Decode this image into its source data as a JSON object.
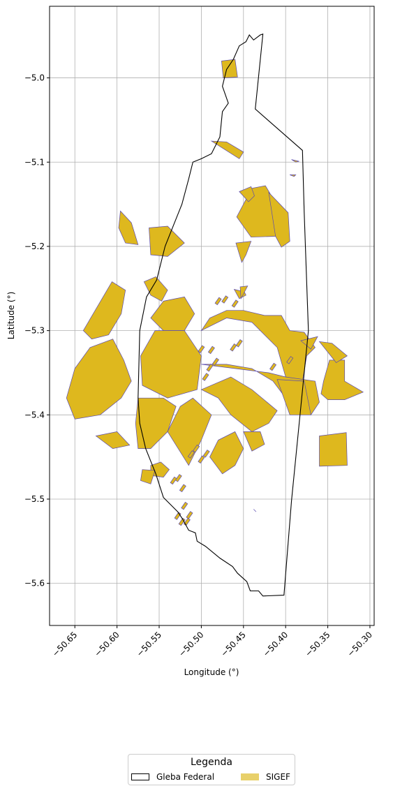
{
  "chart_data": {
    "type": "map",
    "xlabel": "Longitude (°)",
    "ylabel": "Latitude (°)",
    "xlim": [
      -50.68,
      -50.295
    ],
    "ylim": [
      -5.65,
      -4.915
    ],
    "xticks": [
      "−50.65",
      "−50.60",
      "−50.55",
      "−50.50",
      "−50.45",
      "−50.40",
      "−50.35",
      "−50.30"
    ],
    "xtick_values": [
      -50.65,
      -50.6,
      -50.55,
      -50.5,
      -50.45,
      -50.4,
      -50.35,
      -50.3
    ],
    "yticks": [
      "−5.0",
      "−5.1",
      "−5.2",
      "−5.3",
      "−5.4",
      "−5.5",
      "−5.6"
    ],
    "ytick_values": [
      -5.0,
      -5.1,
      -5.2,
      -5.3,
      -5.4,
      -5.5,
      -5.6
    ],
    "grid": true,
    "colors": {
      "sigef_fill": "#deb81e",
      "sigef_edge": "#5a4ab0",
      "gleba_edge": "#000000",
      "grid": "#b0b0b0"
    },
    "legend": {
      "title": "Legenda",
      "placement": "bottom-center",
      "entries": [
        "Gleba Federal",
        "SIGEF"
      ]
    },
    "gleba_boundary": [
      [
        -50.427,
        -4.948
      ],
      [
        -50.436,
        -5.037
      ],
      [
        -50.38,
        -5.086
      ],
      [
        -50.378,
        -5.16
      ],
      [
        -50.373,
        -5.3
      ],
      [
        -50.393,
        -5.502
      ],
      [
        -50.402,
        -5.614
      ],
      [
        -50.427,
        -5.615
      ],
      [
        -50.432,
        -5.609
      ],
      [
        -50.442,
        -5.609
      ],
      [
        -50.446,
        -5.598
      ],
      [
        -50.457,
        -5.588
      ],
      [
        -50.463,
        -5.58
      ],
      [
        -50.478,
        -5.57
      ],
      [
        -50.495,
        -5.556
      ],
      [
        -50.505,
        -5.55
      ],
      [
        -50.507,
        -5.54
      ],
      [
        -50.515,
        -5.537
      ],
      [
        -50.522,
        -5.524
      ],
      [
        -50.528,
        -5.515
      ],
      [
        -50.545,
        -5.498
      ],
      [
        -50.554,
        -5.47
      ],
      [
        -50.566,
        -5.44
      ],
      [
        -50.573,
        -5.41
      ],
      [
        -50.575,
        -5.38
      ],
      [
        -50.574,
        -5.34
      ],
      [
        -50.573,
        -5.3
      ],
      [
        -50.565,
        -5.26
      ],
      [
        -50.553,
        -5.24
      ],
      [
        -50.543,
        -5.2
      ],
      [
        -50.535,
        -5.18
      ],
      [
        -50.523,
        -5.15
      ],
      [
        -50.515,
        -5.12
      ],
      [
        -50.51,
        -5.1
      ],
      [
        -50.5,
        -5.096
      ],
      [
        -50.488,
        -5.09
      ],
      [
        -50.478,
        -5.07
      ],
      [
        -50.475,
        -5.04
      ],
      [
        -50.468,
        -5.03
      ],
      [
        -50.475,
        -5.01
      ],
      [
        -50.47,
        -4.99
      ],
      [
        -50.462,
        -4.978
      ],
      [
        -50.455,
        -4.962
      ],
      [
        -50.447,
        -4.957
      ],
      [
        -50.443,
        -4.949
      ],
      [
        -50.438,
        -4.955
      ],
      [
        -50.43,
        -4.949
      ],
      [
        -50.427,
        -4.948
      ]
    ],
    "sigef_parcels": [
      [
        [
          -50.476,
          -4.98
        ],
        [
          -50.46,
          -4.978
        ],
        [
          -50.457,
          -4.999
        ],
        [
          -50.474,
          -5.0
        ]
      ],
      [
        [
          -50.488,
          -5.075
        ],
        [
          -50.47,
          -5.076
        ],
        [
          -50.45,
          -5.088
        ],
        [
          -50.455,
          -5.096
        ]
      ],
      [
        [
          -50.44,
          -5.131
        ],
        [
          -50.458,
          -5.165
        ],
        [
          -50.441,
          -5.189
        ],
        [
          -50.412,
          -5.188
        ],
        [
          -50.411,
          -5.15
        ],
        [
          -50.424,
          -5.128
        ]
      ],
      [
        [
          -50.455,
          -5.135
        ],
        [
          -50.441,
          -5.129
        ],
        [
          -50.437,
          -5.14
        ],
        [
          -50.444,
          -5.147
        ]
      ],
      [
        [
          -50.42,
          -5.136
        ],
        [
          -50.397,
          -5.16
        ],
        [
          -50.395,
          -5.194
        ],
        [
          -50.405,
          -5.201
        ],
        [
          -50.412,
          -5.188
        ]
      ],
      [
        [
          -50.459,
          -5.196
        ],
        [
          -50.441,
          -5.194
        ],
        [
          -50.447,
          -5.21
        ],
        [
          -50.452,
          -5.219
        ]
      ],
      [
        [
          -50.461,
          -5.251
        ],
        [
          -50.449,
          -5.254
        ],
        [
          -50.447,
          -5.258
        ],
        [
          -50.455,
          -5.262
        ]
      ],
      [
        [
          -50.454,
          -5.248
        ],
        [
          -50.453,
          -5.262
        ],
        [
          -50.445,
          -5.247
        ]
      ],
      [
        [
          -50.596,
          -5.158
        ],
        [
          -50.583,
          -5.172
        ],
        [
          -50.575,
          -5.198
        ],
        [
          -50.59,
          -5.196
        ],
        [
          -50.598,
          -5.178
        ]
      ],
      [
        [
          -50.562,
          -5.178
        ],
        [
          -50.54,
          -5.176
        ],
        [
          -50.52,
          -5.196
        ],
        [
          -50.54,
          -5.212
        ],
        [
          -50.56,
          -5.21
        ]
      ],
      [
        [
          -50.568,
          -5.242
        ],
        [
          -50.554,
          -5.236
        ],
        [
          -50.54,
          -5.252
        ],
        [
          -50.547,
          -5.265
        ],
        [
          -50.56,
          -5.258
        ]
      ],
      [
        [
          -50.606,
          -5.242
        ],
        [
          -50.59,
          -5.252
        ],
        [
          -50.595,
          -5.28
        ],
        [
          -50.61,
          -5.305
        ],
        [
          -50.63,
          -5.31
        ],
        [
          -50.64,
          -5.3
        ]
      ],
      [
        [
          -50.592,
          -5.335
        ],
        [
          -50.605,
          -5.31
        ],
        [
          -50.632,
          -5.32
        ],
        [
          -50.65,
          -5.345
        ],
        [
          -50.66,
          -5.38
        ],
        [
          -50.65,
          -5.405
        ],
        [
          -50.62,
          -5.4
        ],
        [
          -50.595,
          -5.38
        ],
        [
          -50.583,
          -5.36
        ]
      ],
      [
        [
          -50.545,
          -5.265
        ],
        [
          -50.52,
          -5.26
        ],
        [
          -50.508,
          -5.28
        ],
        [
          -50.52,
          -5.3
        ],
        [
          -50.545,
          -5.3
        ],
        [
          -50.56,
          -5.285
        ]
      ],
      [
        [
          -50.555,
          -5.3
        ],
        [
          -50.52,
          -5.3
        ],
        [
          -50.5,
          -5.33
        ],
        [
          -50.505,
          -5.37
        ],
        [
          -50.54,
          -5.38
        ],
        [
          -50.57,
          -5.365
        ],
        [
          -50.572,
          -5.33
        ]
      ],
      [
        [
          -50.575,
          -5.38
        ],
        [
          -50.545,
          -5.38
        ],
        [
          -50.53,
          -5.39
        ],
        [
          -50.54,
          -5.42
        ],
        [
          -50.56,
          -5.44
        ],
        [
          -50.575,
          -5.44
        ],
        [
          -50.578,
          -5.41
        ]
      ],
      [
        [
          -50.525,
          -5.39
        ],
        [
          -50.51,
          -5.38
        ],
        [
          -50.488,
          -5.4
        ],
        [
          -50.5,
          -5.43
        ],
        [
          -50.515,
          -5.46
        ],
        [
          -50.54,
          -5.42
        ]
      ],
      [
        [
          -50.5,
          -5.3
        ],
        [
          -50.47,
          -5.285
        ],
        [
          -50.44,
          -5.29
        ],
        [
          -50.42,
          -5.31
        ],
        [
          -50.41,
          -5.32
        ],
        [
          -50.4,
          -5.355
        ],
        [
          -50.38,
          -5.36
        ],
        [
          -50.375,
          -5.33
        ],
        [
          -50.365,
          -5.32
        ],
        [
          -50.378,
          -5.302
        ],
        [
          -50.395,
          -5.3
        ],
        [
          -50.405,
          -5.282
        ],
        [
          -50.425,
          -5.282
        ],
        [
          -50.45,
          -5.276
        ],
        [
          -50.47,
          -5.276
        ],
        [
          -50.49,
          -5.285
        ]
      ],
      [
        [
          -50.5,
          -5.34
        ],
        [
          -50.47,
          -5.34
        ],
        [
          -50.44,
          -5.345
        ],
        [
          -50.415,
          -5.36
        ],
        [
          -50.4,
          -5.38
        ],
        [
          -50.39,
          -5.395
        ],
        [
          -50.37,
          -5.4
        ],
        [
          -50.36,
          -5.385
        ],
        [
          -50.365,
          -5.36
        ],
        [
          -50.4,
          -5.355
        ],
        [
          -50.42,
          -5.35
        ]
      ],
      [
        [
          -50.5,
          -5.37
        ],
        [
          -50.48,
          -5.38
        ],
        [
          -50.465,
          -5.4
        ],
        [
          -50.44,
          -5.42
        ],
        [
          -50.42,
          -5.41
        ],
        [
          -50.41,
          -5.395
        ],
        [
          -50.44,
          -5.37
        ],
        [
          -50.465,
          -5.355
        ]
      ],
      [
        [
          -50.48,
          -5.43
        ],
        [
          -50.46,
          -5.42
        ],
        [
          -50.45,
          -5.44
        ],
        [
          -50.46,
          -5.46
        ],
        [
          -50.475,
          -5.47
        ],
        [
          -50.49,
          -5.45
        ]
      ],
      [
        [
          -50.45,
          -5.42
        ],
        [
          -50.43,
          -5.42
        ],
        [
          -50.425,
          -5.435
        ],
        [
          -50.44,
          -5.443
        ]
      ],
      [
        [
          -50.362,
          -5.307
        ],
        [
          -50.37,
          -5.322
        ],
        [
          -50.382,
          -5.312
        ]
      ],
      [
        [
          -50.348,
          -5.335
        ],
        [
          -50.33,
          -5.335
        ],
        [
          -50.33,
          -5.36
        ],
        [
          -50.308,
          -5.373
        ],
        [
          -50.33,
          -5.382
        ],
        [
          -50.35,
          -5.382
        ],
        [
          -50.358,
          -5.375
        ],
        [
          -50.355,
          -5.36
        ]
      ],
      [
        [
          -50.36,
          -5.313
        ],
        [
          -50.345,
          -5.315
        ],
        [
          -50.327,
          -5.33
        ],
        [
          -50.34,
          -5.338
        ]
      ],
      [
        [
          -50.36,
          -5.425
        ],
        [
          -50.328,
          -5.421
        ],
        [
          -50.327,
          -5.46
        ],
        [
          -50.36,
          -5.461
        ]
      ],
      [
        [
          -50.41,
          -5.358
        ],
        [
          -50.378,
          -5.36
        ],
        [
          -50.37,
          -5.4
        ],
        [
          -50.395,
          -5.4
        ]
      ],
      [
        [
          -50.625,
          -5.425
        ],
        [
          -50.6,
          -5.42
        ],
        [
          -50.585,
          -5.436
        ],
        [
          -50.605,
          -5.44
        ]
      ],
      [
        [
          -50.56,
          -5.46
        ],
        [
          -50.548,
          -5.456
        ],
        [
          -50.538,
          -5.465
        ],
        [
          -50.545,
          -5.474
        ],
        [
          -50.56,
          -5.472
        ]
      ],
      [
        [
          -50.57,
          -5.465
        ],
        [
          -50.555,
          -5.466
        ],
        [
          -50.56,
          -5.482
        ],
        [
          -50.572,
          -5.478
        ]
      ],
      [
        [
          -50.438,
          -5.512
        ],
        [
          -50.435,
          -5.515
        ]
      ],
      [
        [
          -50.393,
          -5.097
        ],
        [
          -50.388,
          -5.1
        ],
        [
          -50.384,
          -5.099
        ]
      ],
      [
        [
          -50.395,
          -5.115
        ],
        [
          -50.39,
          -5.117
        ],
        [
          -50.388,
          -5.115
        ]
      ]
    ],
    "small_parcels": [
      [
        -50.512,
        -5.447
      ],
      [
        -50.506,
        -5.44
      ],
      [
        -50.5,
        -5.453
      ],
      [
        -50.494,
        -5.446
      ],
      [
        -50.527,
        -5.475
      ],
      [
        -50.522,
        -5.487
      ],
      [
        -50.533,
        -5.478
      ],
      [
        -50.52,
        -5.508
      ],
      [
        -50.514,
        -5.519
      ],
      [
        -50.528,
        -5.52
      ],
      [
        -50.523,
        -5.527
      ],
      [
        -50.517,
        -5.527
      ],
      [
        -50.495,
        -5.355
      ],
      [
        -50.49,
        -5.344
      ],
      [
        -50.483,
        -5.337
      ],
      [
        -50.488,
        -5.323
      ],
      [
        -50.5,
        -5.322
      ],
      [
        -50.462,
        -5.32
      ],
      [
        -50.455,
        -5.315
      ],
      [
        -50.415,
        -5.343
      ],
      [
        -50.395,
        -5.335
      ],
      [
        -50.48,
        -5.265
      ],
      [
        -50.472,
        -5.263
      ],
      [
        -50.46,
        -5.268
      ]
    ]
  }
}
